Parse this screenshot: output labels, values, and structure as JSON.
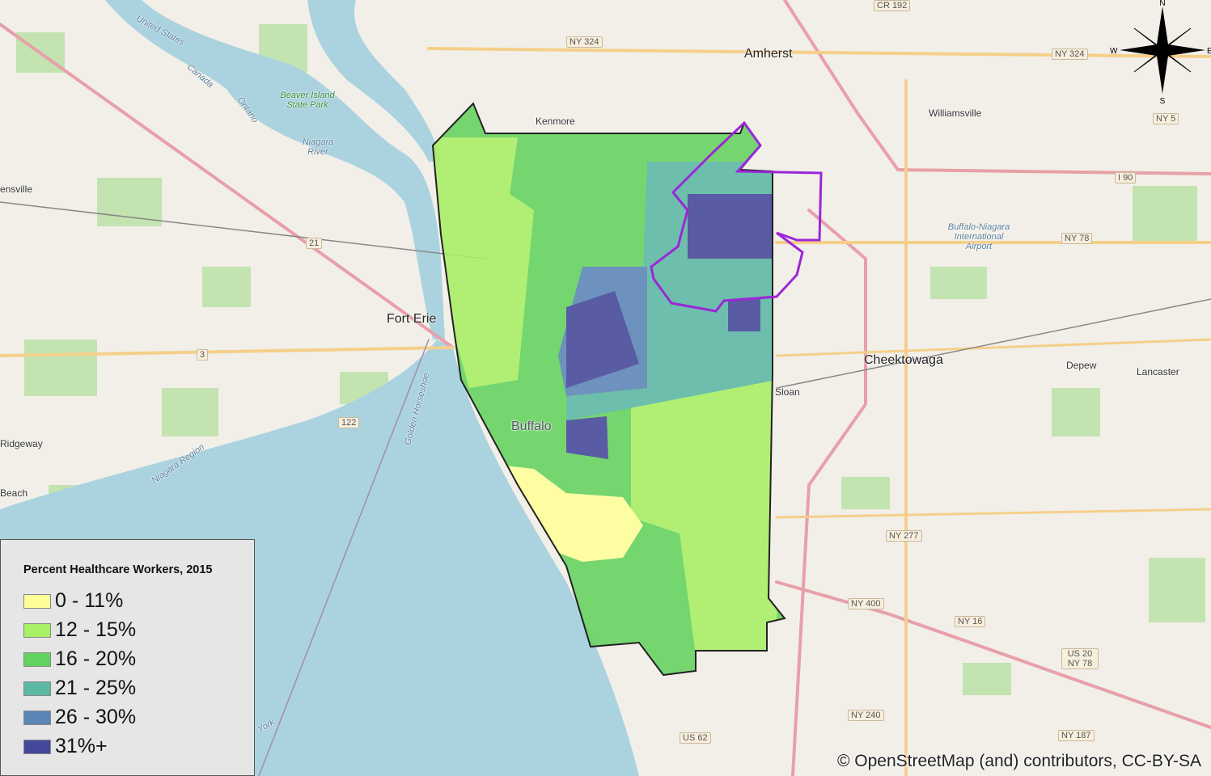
{
  "legend": {
    "title": "Percent Healthcare Workers, 2015",
    "items": [
      {
        "label": "0 - 11%",
        "color": "#ffff99"
      },
      {
        "label": "12 - 15%",
        "color": "#a8f064"
      },
      {
        "label": "16 - 20%",
        "color": "#63d35f"
      },
      {
        "label": "21 - 25%",
        "color": "#5bb8a4"
      },
      {
        "label": "26 - 30%",
        "color": "#5a86b8"
      },
      {
        "label": "31%+",
        "color": "#44479a"
      }
    ]
  },
  "highlight_outline_color": "#9b27d6",
  "compass": {
    "n": "N",
    "s": "S",
    "e": "E",
    "w": "W"
  },
  "places": {
    "amherst": "Amherst",
    "kenmore": "Kenmore",
    "williamsville": "Williamsville",
    "fort_erie": "Fort Erie",
    "cheektowaga": "Cheektowaga",
    "buffalo": "Buffalo",
    "sloan": "Sloan",
    "depew": "Depew",
    "lancaster": "Lancaster",
    "ridgeway": "Ridgeway",
    "beach": "Beach",
    "ensville": "ensville",
    "airport": "Buffalo-Niagara International Airport",
    "beaver_island": "Beaver Island State Park",
    "niagara_river": "Niagara River",
    "united_states": "United States",
    "canada": "Canada",
    "ontario": "Ontario",
    "niagara_region": "Niagara Region",
    "golden_horseshoe": "Golden Horseshoe",
    "york": "York"
  },
  "shields": {
    "ny324a": "NY 324",
    "ny324b": "NY 324",
    "ny5": "NY 5",
    "i190": "I 90",
    "ny78": "NY 78",
    "ny277": "NY 277",
    "ny400": "NY 400",
    "ny16": "NY 16",
    "us20": "US 20 NY 78",
    "ny240": "NY 240",
    "ny187": "NY 187",
    "us62": "US 62",
    "cr192": "CR 192",
    "n3": "3",
    "n21": "21",
    "n122": "122"
  },
  "attribution": "© OpenStreetMap (and) contributors, CC-BY-SA"
}
